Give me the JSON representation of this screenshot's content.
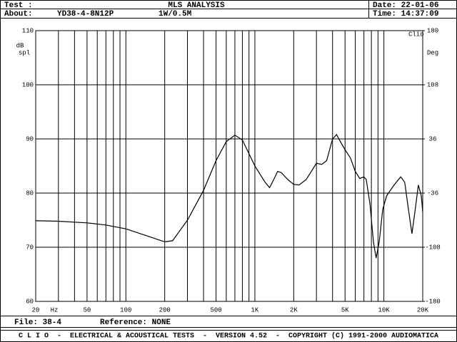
{
  "header": {
    "test_label": "Test :",
    "title": "MLS ANALYSIS",
    "date": "Date: 22-01-06",
    "about_label": "About:",
    "about": "YD38-4-8N12P",
    "condition": "1W/0.5M",
    "time": "Time: 14:37:09"
  },
  "chart_data": {
    "type": "line",
    "log_x": true,
    "grid": true,
    "corner_label": "Clio",
    "ylabel": [
      "dB",
      "spl"
    ],
    "y2label": "Deg",
    "x_unit": "Hz",
    "xlim": [
      20,
      20000
    ],
    "ylim": [
      60,
      110
    ],
    "y2lim": [
      -180,
      180
    ],
    "xticks": [
      20,
      50,
      100,
      200,
      500,
      {
        "value": 1000,
        "label": "1K"
      },
      {
        "value": 2000,
        "label": "2K"
      },
      {
        "value": 5000,
        "label": "5K"
      },
      {
        "value": 10000,
        "label": "10K"
      },
      {
        "value": 20000,
        "label": "20K"
      }
    ],
    "xminor": [
      30,
      40,
      60,
      70,
      80,
      90,
      300,
      400,
      600,
      700,
      800,
      900,
      3000,
      4000,
      6000,
      7000,
      8000,
      9000
    ],
    "yticks": [
      60,
      70,
      80,
      90,
      100,
      110
    ],
    "y2ticks": [
      -180,
      -108,
      -36,
      36,
      108,
      180
    ],
    "series": [
      {
        "color": "#000000",
        "x": [
          20,
          30,
          50,
          70,
          100,
          150,
          200,
          230,
          300,
          400,
          500,
          600,
          700,
          800,
          1000,
          1200,
          1300,
          1400,
          1500,
          1600,
          1800,
          2000,
          2200,
          2500,
          3000,
          3300,
          3600,
          4000,
          4300,
          4600,
          5000,
          5500,
          6000,
          6500,
          7000,
          7300,
          7800,
          8300,
          8700,
          9200,
          9800,
          10500,
          12000,
          13500,
          14500,
          15500,
          16500,
          17500,
          18500,
          19500,
          20000
        ],
        "values": [
          74.9,
          74.8,
          74.5,
          74.1,
          73.4,
          72,
          71,
          71.2,
          75,
          80.5,
          86,
          89.5,
          90.7,
          89.8,
          85,
          82,
          81,
          82.5,
          84,
          83.8,
          82.5,
          81.6,
          81.5,
          82.5,
          85.5,
          85.3,
          86,
          90,
          90.8,
          89.5,
          88,
          86.5,
          84,
          82.7,
          83,
          82.5,
          78,
          71,
          68,
          71,
          77,
          79.5,
          81.5,
          83,
          82,
          77,
          72.5,
          77,
          81.5,
          79.5,
          76.5
        ]
      }
    ]
  },
  "footer": {
    "file": "File: 38-4",
    "reference": "Reference: NONE",
    "copyright": "C L I O  -  ELECTRICAL & ACOUSTICAL TESTS  -  VERSION 4.52  -  COPYRIGHT (C) 1991-2000 AUDIOMATICA"
  }
}
